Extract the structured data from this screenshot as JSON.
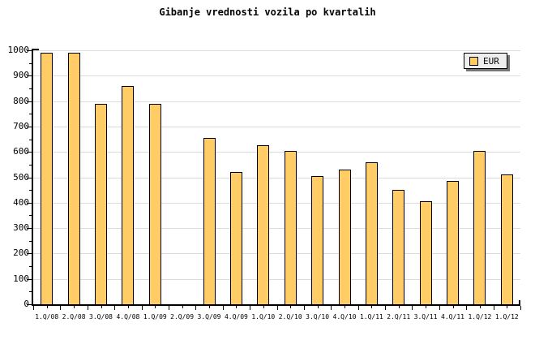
{
  "chart_data": {
    "type": "bar",
    "title": "Gibanje vrednosti vozila po kvartalih",
    "categories": [
      "1.Q/08",
      "2.Q/08",
      "3.Q/08",
      "4.Q/08",
      "1.Q/09",
      "2.Q/09",
      "3.Q/09",
      "4.Q/09",
      "1.Q/10",
      "2.Q/10",
      "3.Q/10",
      "4.Q/10",
      "1.Q/11",
      "2.Q/11",
      "3.Q/11",
      "4.Q/11",
      "1.Q/12",
      "1.Q/12"
    ],
    "series": [
      {
        "name": "EUR",
        "values": [
          990,
          990,
          790,
          860,
          790,
          0,
          655,
          520,
          625,
          605,
          505,
          530,
          560,
          450,
          405,
          485,
          605,
          510
        ]
      }
    ],
    "xlabel": "",
    "ylabel": "",
    "ylim": [
      0,
      1000
    ],
    "y_tick_step": 100,
    "y_minor_tick_step": 50,
    "y_tick_labels": [
      "0",
      "100",
      "200",
      "300",
      "400",
      "500",
      "600",
      "700",
      "800",
      "900",
      "1000"
    ],
    "grid": true,
    "legend": {
      "label": "EUR",
      "position": "top-right"
    },
    "colors": {
      "bar_fill": "#FFCC66",
      "bar_border": "#000000",
      "gridline": "#DCDCDC",
      "axis": "#000000",
      "text": "#000000",
      "background": "#FFFFFF",
      "legend_bg": "#EEEEEE",
      "legend_border": "#000000",
      "legend_shadow": "#777777"
    }
  }
}
